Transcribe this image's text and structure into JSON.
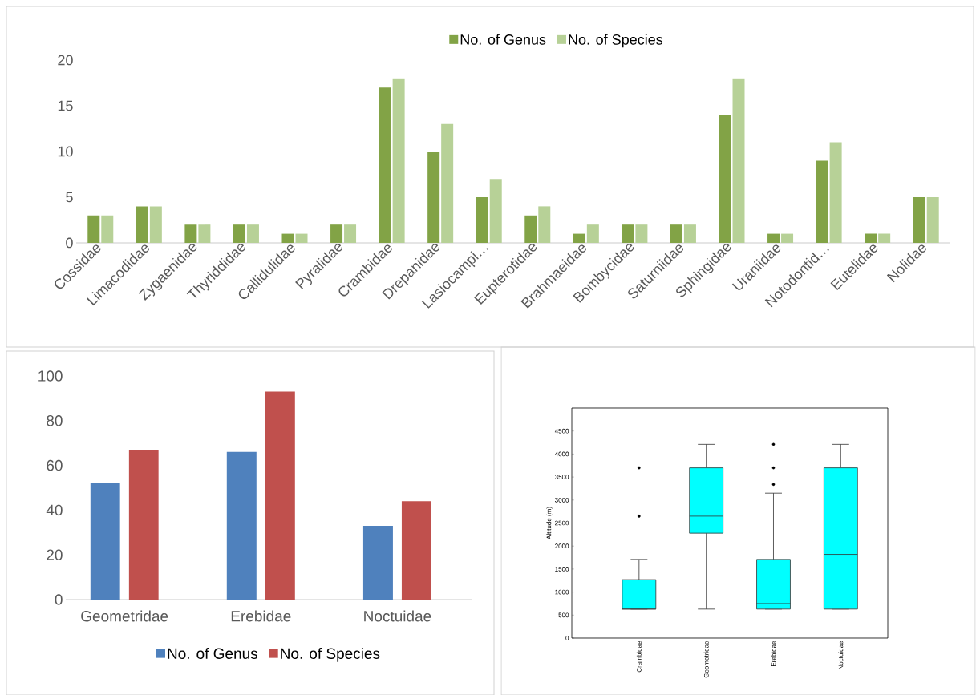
{
  "chart_data": [
    {
      "type": "bar",
      "categories": [
        "Cossidae",
        "Limacodidae",
        "Zygaenidae",
        "Thyriddidae",
        "Callidulidae",
        "Pyralidae",
        "Crambidae",
        "Drepanidae",
        "Lasiocampi…",
        "Eupterotidae",
        "Brahmaeidae",
        "Bombycidae",
        "Saturniidae",
        "Sphingidae",
        "Uraniidae",
        "Notodontid…",
        "Eutelidae",
        "Nolidae"
      ],
      "series": [
        {
          "name": "No. of Genus",
          "color": "#82a346",
          "values": [
            3,
            4,
            2,
            2,
            1,
            2,
            17,
            10,
            5,
            3,
            1,
            2,
            2,
            14,
            1,
            9,
            1,
            5
          ]
        },
        {
          "name": "No. of Species",
          "color": "#b7d197",
          "values": [
            3,
            4,
            2,
            2,
            1,
            2,
            18,
            13,
            7,
            4,
            2,
            2,
            2,
            18,
            1,
            11,
            1,
            5
          ]
        }
      ],
      "ylim": [
        0,
        20
      ],
      "yticks": [
        0,
        5,
        10,
        15,
        20
      ],
      "legend": "top"
    },
    {
      "type": "bar",
      "categories": [
        "Geometridae",
        "Erebidae",
        "Noctuidae"
      ],
      "series": [
        {
          "name": "No. of Genus",
          "color": "#4f81bd",
          "values": [
            52,
            66,
            33
          ]
        },
        {
          "name": "No. of Species",
          "color": "#c0504d",
          "values": [
            67,
            93,
            44
          ]
        }
      ],
      "ylim": [
        0,
        100
      ],
      "yticks": [
        0,
        20,
        40,
        60,
        80,
        100
      ],
      "legend": "bottom"
    },
    {
      "type": "box",
      "categories": [
        "Crambidae",
        "Geometridae",
        "Erebidae",
        "Noctuidae"
      ],
      "ylabel": "Altitude (m)",
      "color": "#00ffff",
      "boxes": [
        {
          "low": 630,
          "q1": 630,
          "median": 630,
          "q3": 1270,
          "high": 1710,
          "outliers": [
            2650,
            3700
          ]
        },
        {
          "low": 630,
          "q1": 2280,
          "median": 2650,
          "q3": 3700,
          "high": 4210
        },
        {
          "low": 630,
          "q1": 630,
          "median": 750,
          "q3": 1710,
          "high": 3150,
          "outliers": [
            3340,
            3700,
            4210
          ]
        },
        {
          "low": 630,
          "q1": 630,
          "median": 1820,
          "q3": 3700,
          "high": 4210
        }
      ],
      "ylim": [
        0,
        5000
      ],
      "yticks": [
        0,
        500,
        1000,
        1500,
        2000,
        2500,
        3000,
        3500,
        4000,
        4500
      ]
    }
  ]
}
